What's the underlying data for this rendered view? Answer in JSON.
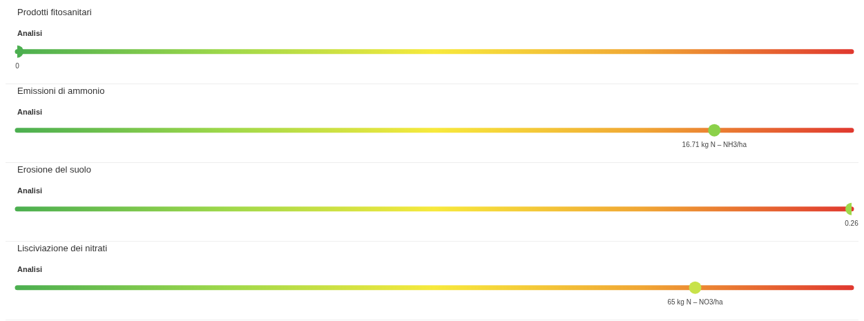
{
  "chart_data": [
    {
      "type": "other",
      "title": "Prodotti fitosanitari",
      "subtitle": "Analisi",
      "values": [
        0
      ],
      "value_labels": [
        "0"
      ],
      "color": "#4caf50"
    },
    {
      "type": "other",
      "title": "Emissioni di ammonio",
      "subtitle": "Analisi",
      "values": [
        16.71
      ],
      "value_labels": [
        "16.71 kg N – NH3/ha"
      ],
      "color": "#8bd14a"
    },
    {
      "type": "other",
      "title": "Erosione del suolo",
      "subtitle": "Analisi",
      "values": [
        0.26
      ],
      "value_labels": [
        "0.26"
      ],
      "color": "#9ed84a"
    },
    {
      "type": "other",
      "title": "Lisciviazione dei nitrati",
      "subtitle": "Analisi",
      "values": [
        65
      ],
      "value_labels": [
        "65 kg N – NO3/ha"
      ],
      "color": "#c8e24a"
    }
  ]
}
